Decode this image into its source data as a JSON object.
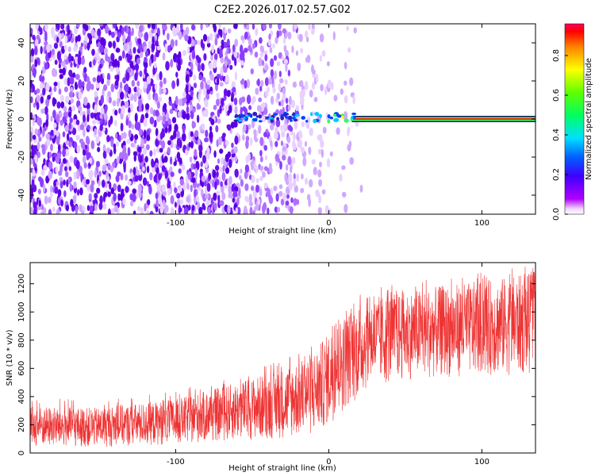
{
  "title": "C2E2.2026.017.02.57.G02",
  "chart_data": [
    {
      "type": "heatmap",
      "xlabel": "Height of straight line (km)",
      "ylabel": "Frequency (Hz)",
      "xlim": [
        -195,
        135
      ],
      "ylim": [
        -50,
        50
      ],
      "xticks": [
        -100,
        0,
        100
      ],
      "yticks": [
        -40,
        -20,
        0,
        20,
        40
      ],
      "colorbar": {
        "label": "Normalized spectral amplitude",
        "range": [
          0,
          0.96
        ],
        "ticks": [
          0.0,
          0.2,
          0.4,
          0.6,
          0.8
        ]
      },
      "signal_line": {
        "frequency": 0,
        "x_start": 15,
        "x_end": 135,
        "amplitude": 0.9
      },
      "noise_region": {
        "x_start": -195,
        "x_end": 20,
        "description_level": "dense below -60 km, fading toward 20 km"
      }
    },
    {
      "type": "line",
      "xlabel": "Height of straight line (km)",
      "ylabel": "SNR (10 * v/v)",
      "xlim": [
        -195,
        135
      ],
      "ylim": [
        0,
        1350
      ],
      "xticks": [
        -100,
        0,
        100
      ],
      "yticks": [
        0,
        200,
        400,
        600,
        800,
        1000,
        1200
      ],
      "series": [
        {
          "name": "SNR",
          "color": "#ee3333",
          "x": [
            -195,
            -150,
            -100,
            -60,
            -30,
            -10,
            0,
            10,
            25,
            50,
            100,
            135
          ],
          "y_low": [
            40,
            40,
            60,
            90,
            100,
            120,
            200,
            300,
            450,
            520,
            550,
            550
          ],
          "y_high": [
            330,
            320,
            380,
            500,
            600,
            720,
            850,
            980,
            1100,
            1150,
            1220,
            1280
          ]
        }
      ]
    }
  ]
}
